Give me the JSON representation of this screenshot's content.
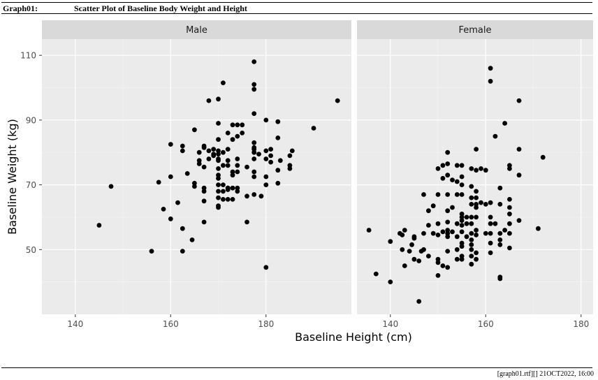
{
  "header": {
    "graph_id": "Graph01:",
    "title": "Scatter Plot of Baseline Body Weight and Height"
  },
  "footer": {
    "text": "[graph01.rtf][] 21OCT2022, 16:00"
  },
  "chart_data": {
    "type": "scatter",
    "title": "Scatter Plot of Baseline Body Weight and Height",
    "xlabel": "Baseline Height (cm)",
    "ylabel": "Baseline Weight (kg)",
    "xlim": [
      133,
      185
    ],
    "ylim": [
      30,
      115
    ],
    "x_ticks": [
      140,
      160,
      180
    ],
    "y_ticks": [
      50,
      70,
      90,
      110
    ],
    "grid": true,
    "panel_background": "#ebebeb",
    "strip_background": "#d9d9d9",
    "point_color": "#000000",
    "facets": [
      {
        "name": "Male",
        "points": [
          [
            145,
            57.5
          ],
          [
            147.5,
            69.5
          ],
          [
            156,
            49.5
          ],
          [
            157.5,
            70.8
          ],
          [
            158.5,
            62.5
          ],
          [
            160,
            82.5
          ],
          [
            160,
            72.5
          ],
          [
            160,
            59.5
          ],
          [
            161.5,
            64.5
          ],
          [
            162.5,
            82
          ],
          [
            162.5,
            80.5
          ],
          [
            162.5,
            56.5
          ],
          [
            162.5,
            49.5
          ],
          [
            163.5,
            73.5
          ],
          [
            164.5,
            53
          ],
          [
            165,
            87
          ],
          [
            165,
            70.5
          ],
          [
            165,
            69.5
          ],
          [
            166,
            80
          ],
          [
            166,
            77.5
          ],
          [
            166,
            76.5
          ],
          [
            167,
            82
          ],
          [
            167,
            81.5
          ],
          [
            167,
            75.5
          ],
          [
            167,
            69
          ],
          [
            167,
            68
          ],
          [
            167,
            65
          ],
          [
            167,
            58.5
          ],
          [
            168,
            96
          ],
          [
            168,
            80.5
          ],
          [
            168,
            78
          ],
          [
            169,
            81
          ],
          [
            169,
            79.5
          ],
          [
            169,
            79
          ],
          [
            170,
            96.5
          ],
          [
            170,
            89
          ],
          [
            170,
            84
          ],
          [
            170,
            80.5
          ],
          [
            170,
            79.5
          ],
          [
            170,
            78
          ],
          [
            170,
            77.5
          ],
          [
            170,
            75
          ],
          [
            170,
            73
          ],
          [
            170,
            72
          ],
          [
            170,
            70
          ],
          [
            170,
            68
          ],
          [
            170,
            66
          ],
          [
            170,
            63.5
          ],
          [
            170,
            63
          ],
          [
            171,
            101.5
          ],
          [
            171,
            80
          ],
          [
            171,
            76
          ],
          [
            171,
            70
          ],
          [
            171,
            68
          ],
          [
            171,
            65.5
          ],
          [
            172,
            86
          ],
          [
            172,
            81
          ],
          [
            172,
            77.5
          ],
          [
            172,
            76
          ],
          [
            172,
            69
          ],
          [
            172,
            68.5
          ],
          [
            172,
            65.5
          ],
          [
            172,
            69
          ],
          [
            173,
            88.5
          ],
          [
            173,
            84
          ],
          [
            173,
            74
          ],
          [
            173,
            73
          ],
          [
            173,
            69
          ],
          [
            173,
            65.5
          ],
          [
            174,
            88.5
          ],
          [
            174,
            85
          ],
          [
            174,
            78
          ],
          [
            174,
            76
          ],
          [
            174,
            74
          ],
          [
            174,
            68
          ],
          [
            174,
            69
          ],
          [
            175,
            88.5
          ],
          [
            175,
            86
          ],
          [
            176,
            75.5
          ],
          [
            176,
            66.5
          ],
          [
            176,
            58.5
          ],
          [
            177.5,
            108
          ],
          [
            177.5,
            101
          ],
          [
            177.5,
            99.5
          ],
          [
            177.5,
            92
          ],
          [
            177.5,
            83
          ],
          [
            177.5,
            81.5
          ],
          [
            177.5,
            81
          ],
          [
            177.5,
            80
          ],
          [
            177.5,
            78
          ],
          [
            177.5,
            74
          ],
          [
            177.5,
            72.5
          ],
          [
            177.5,
            67
          ],
          [
            178.5,
            79.5
          ],
          [
            179,
            66.5
          ],
          [
            180,
            90
          ],
          [
            180,
            80.5
          ],
          [
            180,
            78
          ],
          [
            180,
            72.5
          ],
          [
            180,
            70
          ],
          [
            180,
            44.5
          ],
          [
            181,
            81
          ],
          [
            181,
            79
          ],
          [
            181,
            77
          ],
          [
            182.5,
            89.5
          ],
          [
            182.5,
            84.5
          ],
          [
            182.5,
            74.5
          ],
          [
            182.5,
            70.5
          ],
          [
            183,
            77.5
          ],
          [
            185,
            79
          ],
          [
            185,
            75
          ],
          [
            185,
            76
          ],
          [
            185.5,
            80.5
          ],
          [
            190,
            87.5
          ],
          [
            195,
            96
          ]
        ]
      },
      {
        "name": "Female",
        "points": [
          [
            135.5,
            56
          ],
          [
            137,
            42.5
          ],
          [
            140,
            40
          ],
          [
            140,
            52.5
          ],
          [
            142,
            55
          ],
          [
            142.5,
            54.5
          ],
          [
            142.5,
            50
          ],
          [
            143,
            45
          ],
          [
            143,
            56
          ],
          [
            144,
            49.5
          ],
          [
            144.5,
            51.5
          ],
          [
            145,
            47
          ],
          [
            145,
            54
          ],
          [
            145,
            53.5
          ],
          [
            146,
            34
          ],
          [
            146,
            46.5
          ],
          [
            146.5,
            49.5
          ],
          [
            147,
            67
          ],
          [
            147,
            55
          ],
          [
            147,
            50
          ],
          [
            148,
            48
          ],
          [
            148,
            57.5
          ],
          [
            148,
            62
          ],
          [
            149,
            63.5
          ],
          [
            149,
            55
          ],
          [
            150,
            75
          ],
          [
            150,
            67
          ],
          [
            150,
            58
          ],
          [
            150,
            54.5
          ],
          [
            150,
            47
          ],
          [
            150,
            46
          ],
          [
            150,
            42
          ],
          [
            151,
            76
          ],
          [
            151,
            72
          ],
          [
            151,
            55.5
          ],
          [
            151,
            45
          ],
          [
            152,
            80
          ],
          [
            152,
            76.5
          ],
          [
            152,
            73
          ],
          [
            152,
            67
          ],
          [
            152,
            62
          ],
          [
            152,
            58.5
          ],
          [
            152,
            56
          ],
          [
            152,
            55
          ],
          [
            152,
            54
          ],
          [
            152,
            49.5
          ],
          [
            152,
            44.5
          ],
          [
            153,
            71.5
          ],
          [
            153,
            63
          ],
          [
            153,
            55.5
          ],
          [
            154,
            76
          ],
          [
            154,
            71
          ],
          [
            154,
            67
          ],
          [
            154,
            58
          ],
          [
            154,
            54
          ],
          [
            154,
            50
          ],
          [
            154,
            47
          ],
          [
            155,
            76
          ],
          [
            155,
            72.5
          ],
          [
            155,
            70
          ],
          [
            155,
            67
          ],
          [
            155,
            61
          ],
          [
            155,
            60
          ],
          [
            155,
            59
          ],
          [
            155,
            57.5
          ],
          [
            155,
            55.5
          ],
          [
            155,
            52
          ],
          [
            155,
            51
          ],
          [
            155,
            48
          ],
          [
            155,
            47
          ],
          [
            156,
            60
          ],
          [
            156,
            58
          ],
          [
            156,
            54
          ],
          [
            157,
            75
          ],
          [
            157,
            69.5
          ],
          [
            157,
            66
          ],
          [
            157,
            64
          ],
          [
            157,
            60
          ],
          [
            157,
            58
          ],
          [
            157,
            55
          ],
          [
            157,
            53
          ],
          [
            157,
            51.5
          ],
          [
            157,
            50
          ],
          [
            157,
            48
          ],
          [
            157,
            45.5
          ],
          [
            158,
            81
          ],
          [
            158,
            74.5
          ],
          [
            158,
            68
          ],
          [
            158,
            66
          ],
          [
            158,
            64
          ],
          [
            158,
            63
          ],
          [
            158,
            60
          ],
          [
            158,
            56
          ],
          [
            158,
            54.5
          ],
          [
            158,
            49
          ],
          [
            158,
            47
          ],
          [
            159,
            75
          ],
          [
            159,
            64.5
          ],
          [
            160,
            74.5
          ],
          [
            160,
            64
          ],
          [
            160,
            55
          ],
          [
            161,
            106
          ],
          [
            161,
            102
          ],
          [
            161,
            64.5
          ],
          [
            161,
            60
          ],
          [
            161,
            58
          ],
          [
            161,
            55
          ],
          [
            161,
            52
          ],
          [
            161,
            49
          ],
          [
            162,
            85
          ],
          [
            162,
            58
          ],
          [
            163,
            69
          ],
          [
            163,
            64
          ],
          [
            163,
            55
          ],
          [
            163,
            53
          ],
          [
            163,
            51.5
          ],
          [
            163,
            41.5
          ],
          [
            163,
            41
          ],
          [
            164,
            89
          ],
          [
            164,
            56
          ],
          [
            165,
            76
          ],
          [
            165,
            75
          ],
          [
            165,
            65.5
          ],
          [
            165,
            63
          ],
          [
            165,
            61
          ],
          [
            165,
            58
          ],
          [
            165,
            55
          ],
          [
            165,
            50.5
          ],
          [
            167,
            96
          ],
          [
            167,
            81
          ],
          [
            167,
            73
          ],
          [
            167,
            59
          ],
          [
            171,
            56.5
          ],
          [
            172,
            78.5
          ]
        ]
      }
    ]
  }
}
